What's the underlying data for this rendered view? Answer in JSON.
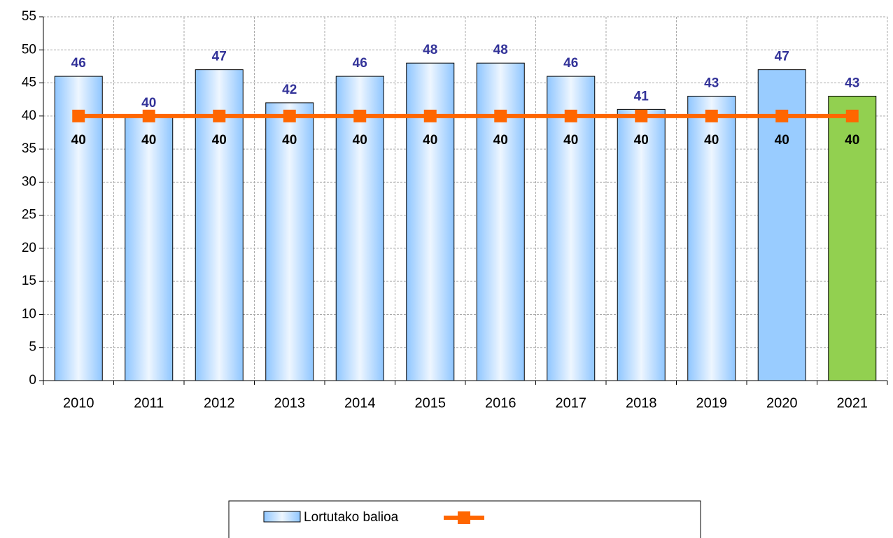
{
  "chart_data": {
    "type": "bar_line",
    "categories": [
      "2010",
      "2011",
      "2012",
      "2013",
      "2014",
      "2015",
      "2016",
      "2017",
      "2018",
      "2019",
      "2020",
      "2021"
    ],
    "series": [
      {
        "name": "Lortutako balioa",
        "type": "bar",
        "color": "#a6d2ff",
        "gradient": true,
        "colors": [
          "#a6d2ff",
          "#a6d2ff",
          "#a6d2ff",
          "#a6d2ff",
          "#a6d2ff",
          "#a6d2ff",
          "#a6d2ff",
          "#a6d2ff",
          "#a6d2ff",
          "#a6d2ff",
          "#99ccff",
          "#92d050"
        ],
        "label_color": "#333399",
        "values": [
          46,
          40,
          47,
          42,
          46,
          48,
          48,
          46,
          41,
          43,
          47,
          43
        ]
      },
      {
        "type": "line",
        "color": "#ff6600",
        "label_color": "#000000",
        "values": [
          40,
          40,
          40,
          40,
          40,
          40,
          40,
          40,
          40,
          40,
          40,
          40
        ]
      }
    ],
    "ylim": [
      0,
      55
    ],
    "yticks": [
      0,
      5,
      10,
      15,
      20,
      25,
      30,
      35,
      40,
      45,
      50,
      55
    ],
    "grid": true,
    "legend": "bottom"
  }
}
